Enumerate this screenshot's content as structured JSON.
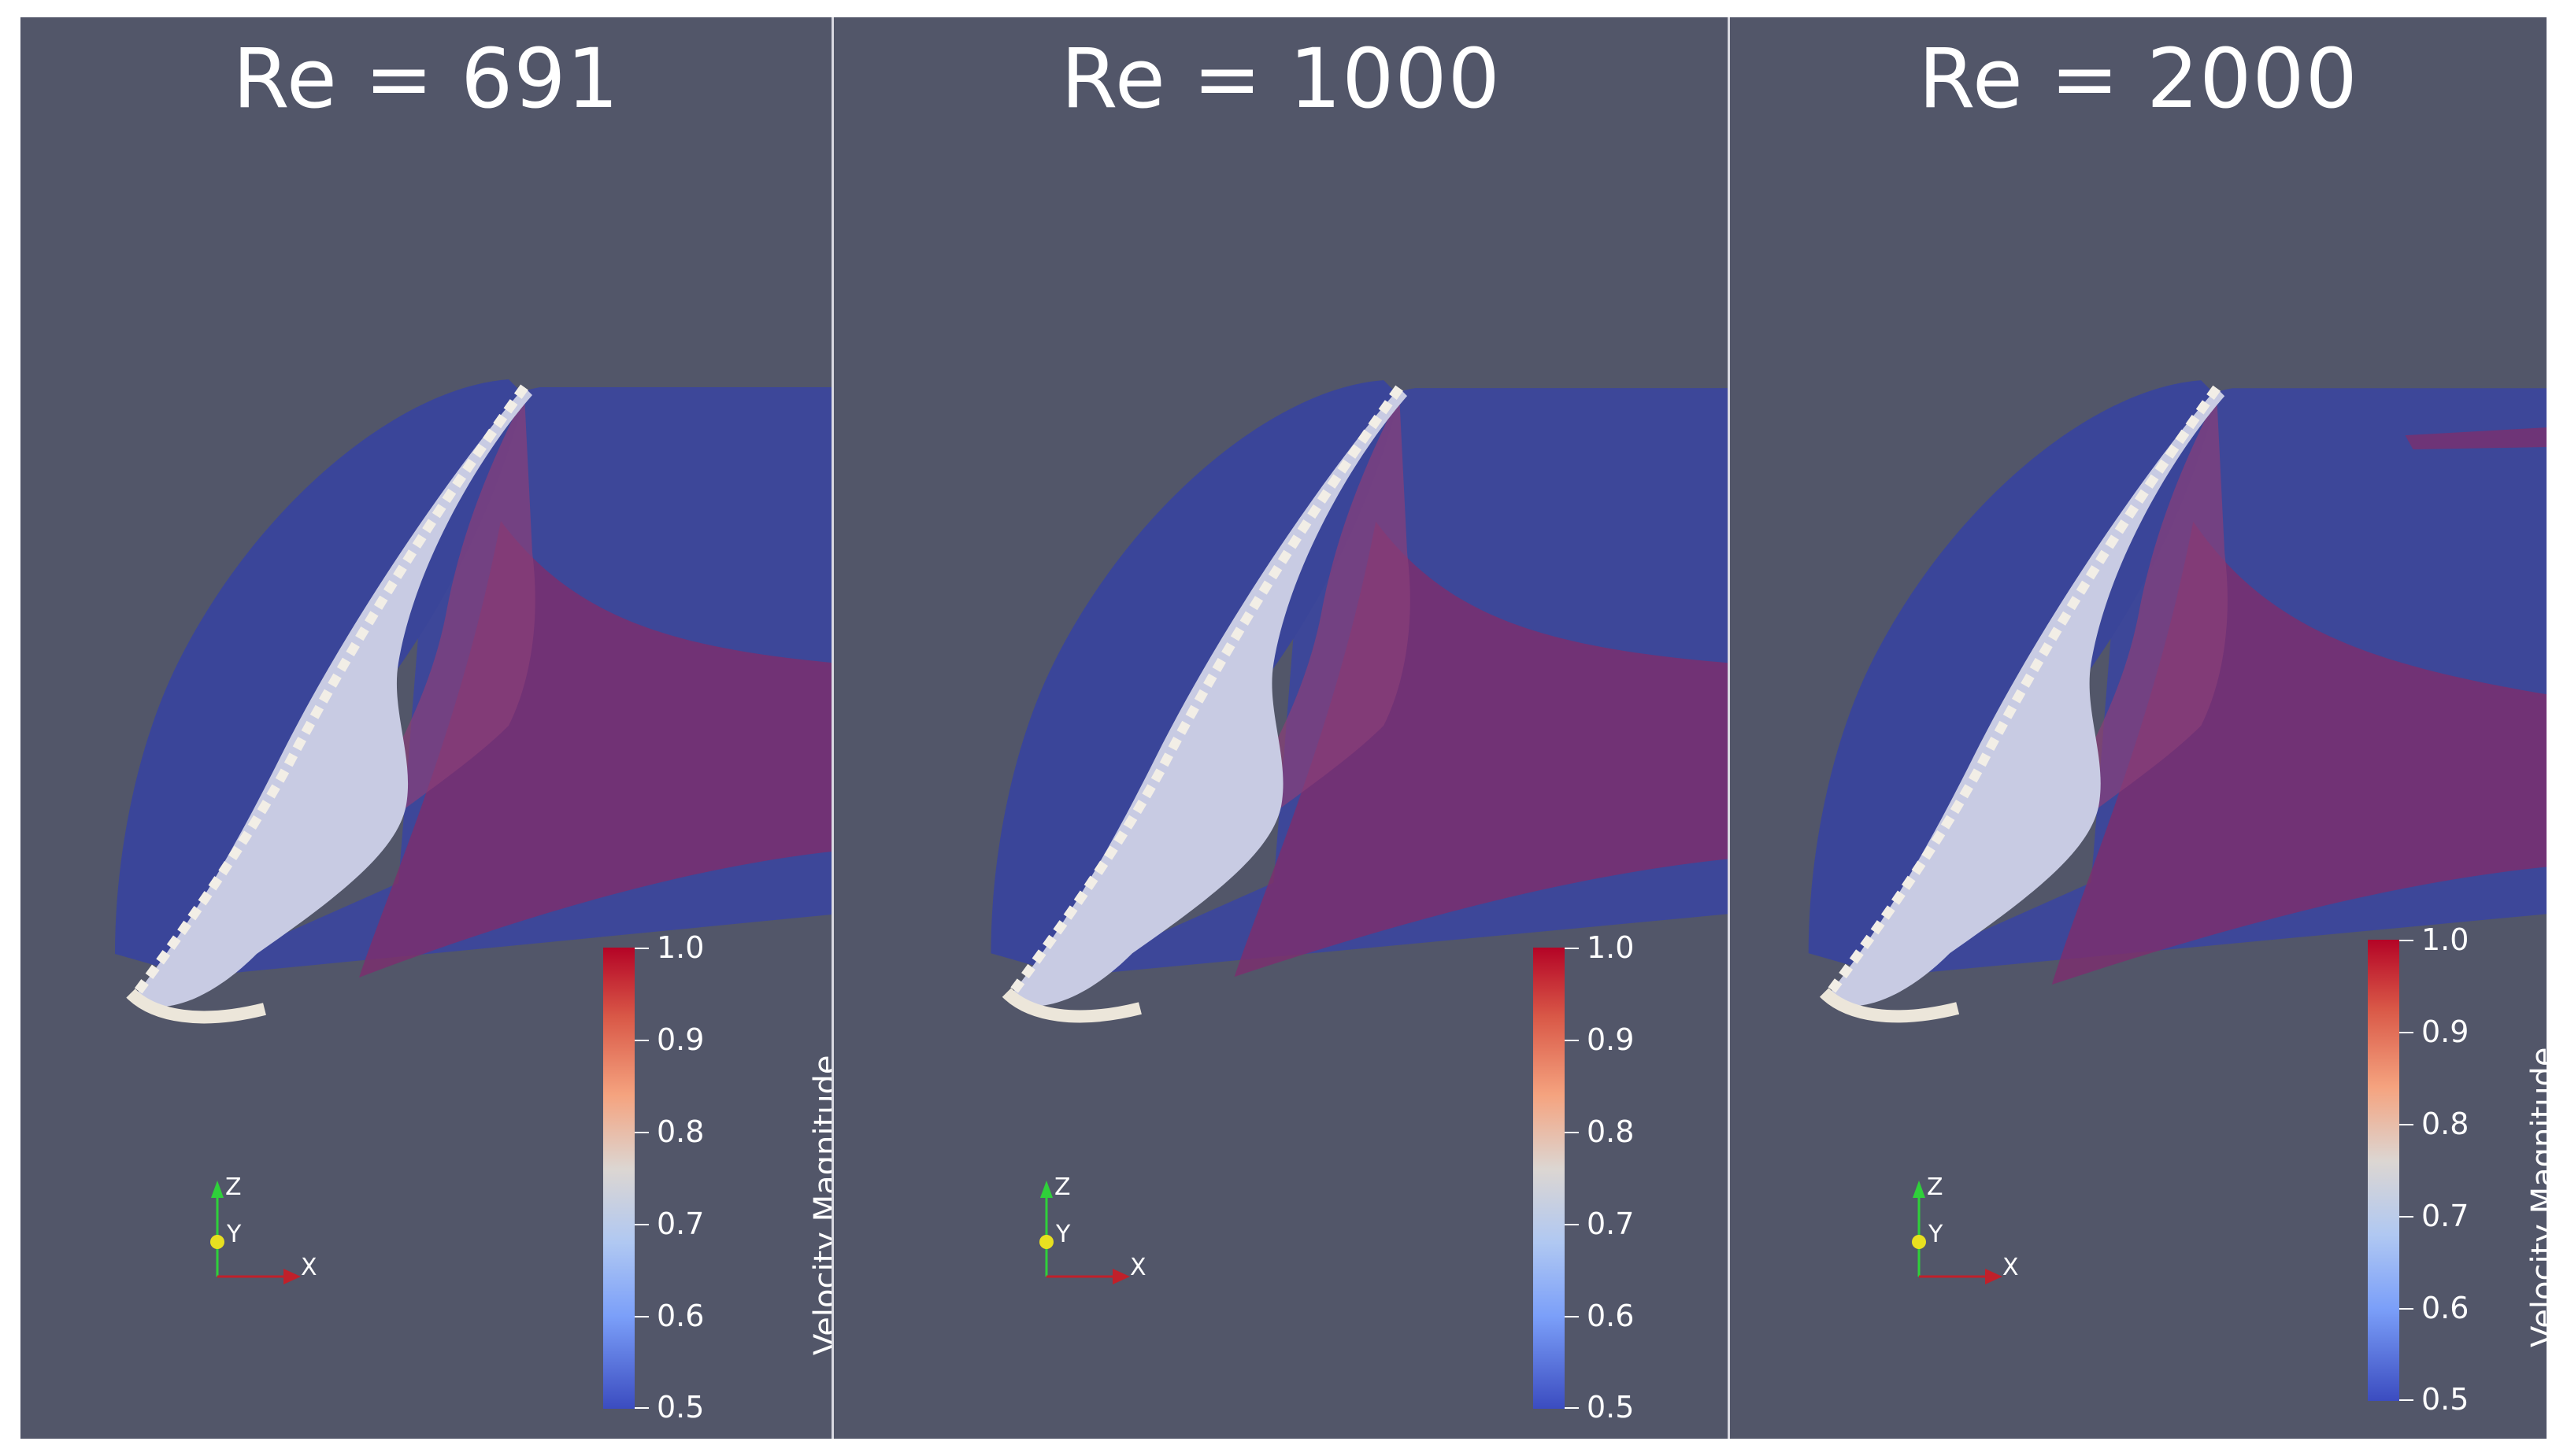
{
  "panels": [
    {
      "title": "Re = 691"
    },
    {
      "title": "Re = 1000"
    },
    {
      "title": "Re = 2000"
    }
  ],
  "colorbar": {
    "title": "Velocity Magnitude",
    "ticks": [
      "1.0",
      "0.9",
      "0.8",
      "0.7",
      "0.6",
      "0.5"
    ],
    "range": [
      0.5,
      1.0
    ],
    "colors": {
      "high": "#b40426",
      "mid": "#dcd6d2",
      "low": "#3b4cc0"
    }
  },
  "axes": {
    "z": "Z",
    "y": "Y",
    "x": "X"
  },
  "colors": {
    "background": "#525669",
    "wake": "#3c479c",
    "vortex": "#7a2f6e",
    "wing": "#e8e4dc"
  }
}
